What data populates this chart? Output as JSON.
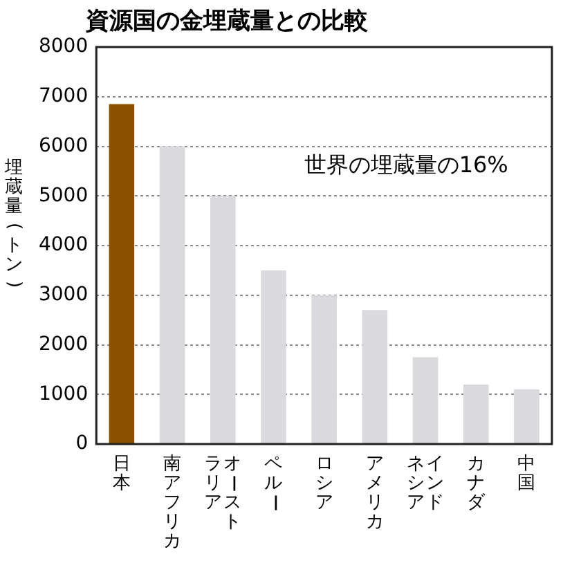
{
  "chart_data": {
    "type": "bar",
    "title": "資源国の金埋蔵量との比較",
    "ylabel": "埋蔵量(トン)",
    "categories": [
      "日本",
      "南アフリカ",
      "オーストラリア",
      "ペルー",
      "ロシア",
      "アメリカ",
      "インドネシア",
      "カナダ",
      "中国"
    ],
    "values": [
      6850,
      6000,
      5000,
      3500,
      3000,
      2700,
      1750,
      1200,
      1100
    ],
    "colors": [
      "#8b5000",
      "#d9d9de",
      "#d9d9de",
      "#d9d9de",
      "#d9d9de",
      "#d9d9de",
      "#d9d9de",
      "#d9d9de",
      "#d9d9de"
    ],
    "ylim": [
      0,
      8000
    ],
    "yticks": [
      0,
      1000,
      2000,
      3000,
      4000,
      5000,
      6000,
      7000,
      8000
    ],
    "grid": "y",
    "annotations": [
      "世界の埋蔵量の16%"
    ]
  }
}
